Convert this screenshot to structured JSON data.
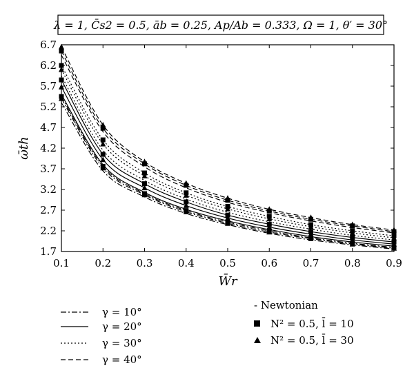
{
  "chart_data": {
    "type": "line",
    "title": "λ = 1, C̄s2 = 0.5, āb = 0.25, Ap/Ab = 0.333, Ω = 1, θ′ = 30°",
    "xlabel": "W̄r",
    "ylabel": "ω̄th",
    "xlim": [
      0.1,
      0.9
    ],
    "ylim": [
      1.7,
      6.7
    ],
    "x_ticks": [
      "0.1",
      "0.2",
      "0.3",
      "0.4",
      "0.5",
      "0.6",
      "0.7",
      "0.8",
      "0.9"
    ],
    "y_ticks": [
      "6.7",
      "6.2",
      "5.7",
      "5.2",
      "4.7",
      "4.2",
      "3.7",
      "3.2",
      "2.7",
      "2.2",
      "1.7"
    ],
    "x": [
      0.1,
      0.2,
      0.3,
      0.4,
      0.5,
      0.6,
      0.7,
      0.8,
      0.9
    ],
    "grid": false,
    "legend_line_styles": [
      {
        "label": "γ = 10°",
        "style": "dash-dot"
      },
      {
        "label": "γ = 20°",
        "style": "solid"
      },
      {
        "label": "γ = 30°",
        "style": "dotted"
      },
      {
        "label": "γ = 40°",
        "style": "dashed"
      }
    ],
    "legend_fluids": [
      {
        "label": "- Newtonian",
        "marker": "none"
      },
      {
        "label": "N² = 0.5, l̄ = 10",
        "marker": "square"
      },
      {
        "label": "N² = 0.5, l̄ = 30",
        "marker": "triangle"
      }
    ],
    "series": [
      {
        "gamma": "10°",
        "fluid": "Newtonian",
        "style": "dash-dot",
        "marker": "none",
        "values": [
          5.3,
          3.65,
          3.02,
          2.62,
          2.35,
          2.14,
          1.98,
          1.86,
          1.76
        ]
      },
      {
        "gamma": "10°",
        "fluid": "N2=0.5, l=10",
        "style": "dash-dot",
        "marker": "square",
        "values": [
          5.45,
          3.76,
          3.1,
          2.69,
          2.41,
          2.2,
          2.03,
          1.9,
          1.8
        ]
      },
      {
        "gamma": "10°",
        "fluid": "N2=0.5, l=30",
        "style": "dash-dot",
        "marker": "triangle",
        "values": [
          5.4,
          3.72,
          3.07,
          2.66,
          2.38,
          2.17,
          2.01,
          1.88,
          1.78
        ]
      },
      {
        "gamma": "20°",
        "fluid": "Newtonian",
        "style": "solid",
        "marker": "none",
        "values": [
          5.5,
          3.8,
          3.13,
          2.72,
          2.44,
          2.23,
          2.06,
          1.93,
          1.83
        ]
      },
      {
        "gamma": "20°",
        "fluid": "N2=0.5, l=10",
        "style": "solid",
        "marker": "square",
        "values": [
          5.85,
          4.05,
          3.34,
          2.9,
          2.58,
          2.36,
          2.18,
          2.04,
          1.93
        ]
      },
      {
        "gamma": "20°",
        "fluid": "N2=0.5, l=30",
        "style": "solid",
        "marker": "triangle",
        "values": [
          5.68,
          3.92,
          3.24,
          2.81,
          2.51,
          2.29,
          2.12,
          1.98,
          1.88
        ]
      },
      {
        "gamma": "30°",
        "fluid": "Newtonian",
        "style": "dotted",
        "marker": "none",
        "values": [
          5.95,
          4.15,
          3.42,
          2.97,
          2.65,
          2.42,
          2.24,
          2.09,
          1.98
        ]
      },
      {
        "gamma": "30°",
        "fluid": "N2=0.5, l=10",
        "style": "dotted",
        "marker": "square",
        "values": [
          6.2,
          4.4,
          3.6,
          3.12,
          2.79,
          2.55,
          2.35,
          2.2,
          2.08
        ]
      },
      {
        "gamma": "30°",
        "fluid": "N2=0.5, l=30",
        "style": "dotted",
        "marker": "triangle",
        "values": [
          6.1,
          4.3,
          3.53,
          3.06,
          2.73,
          2.49,
          2.3,
          2.15,
          2.03
        ]
      },
      {
        "gamma": "40°",
        "fluid": "Newtonian",
        "style": "dashed",
        "marker": "none",
        "values": [
          6.45,
          4.6,
          3.75,
          3.24,
          2.89,
          2.64,
          2.44,
          2.28,
          2.15
        ]
      },
      {
        "gamma": "40°",
        "fluid": "N2=0.5, l=10",
        "style": "dashed",
        "marker": "square",
        "values": [
          6.55,
          4.68,
          3.82,
          3.3,
          2.94,
          2.68,
          2.48,
          2.32,
          2.18
        ]
      },
      {
        "gamma": "40°",
        "fluid": "N2=0.5, l=30",
        "style": "dashed",
        "marker": "triangle",
        "values": [
          6.65,
          4.76,
          3.87,
          3.35,
          2.99,
          2.72,
          2.52,
          2.35,
          2.22
        ]
      }
    ]
  }
}
